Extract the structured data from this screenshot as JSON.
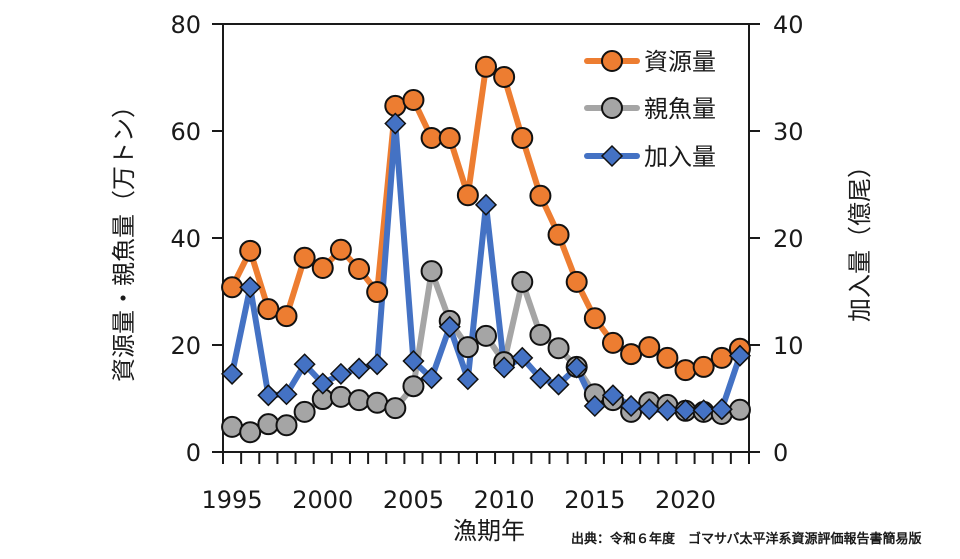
{
  "chart_data": {
    "type": "line",
    "title": "",
    "xlabel": "漁期年",
    "ylabel": "資源量・親魚量（万トン）",
    "y2label": "加入量（億尾）",
    "xlim": [
      1994.5,
      2023.5
    ],
    "ylim": [
      0,
      80
    ],
    "y2lim": [
      0,
      40
    ],
    "x_ticks": [
      1995,
      2000,
      2005,
      2010,
      2015,
      2020
    ],
    "y_ticks": [
      0,
      20,
      40,
      60,
      80
    ],
    "y2_ticks": [
      0,
      10,
      20,
      30,
      40
    ],
    "grid": false,
    "legend_position": "top-right",
    "x": [
      1995,
      1996,
      1997,
      1998,
      1999,
      2000,
      2001,
      2002,
      2003,
      2004,
      2005,
      2006,
      2007,
      2008,
      2009,
      2010,
      2011,
      2012,
      2013,
      2014,
      2015,
      2016,
      2017,
      2018,
      2019,
      2020,
      2021,
      2022,
      2023
    ],
    "series": [
      {
        "name": "資源量",
        "axis": "left",
        "marker": "circle",
        "color": "#ED7D31",
        "values": [
          30.8,
          37.6,
          26.7,
          25.4,
          36.3,
          34.4,
          37.8,
          34.2,
          29.9,
          64.7,
          65.8,
          58.7,
          58.7,
          48.0,
          72.0,
          70.1,
          58.7,
          47.9,
          40.6,
          31.8,
          25.0,
          20.4,
          18.3,
          19.6,
          17.6,
          15.3,
          15.9,
          17.6,
          19.3
        ]
      },
      {
        "name": "親魚量",
        "axis": "left",
        "marker": "circle",
        "color": "#A5A5A5",
        "values": [
          4.7,
          3.7,
          5.2,
          5.0,
          7.5,
          9.9,
          10.3,
          9.7,
          9.2,
          8.2,
          12.3,
          33.8,
          24.5,
          19.6,
          21.7,
          16.8,
          31.8,
          21.9,
          19.4,
          15.9,
          10.8,
          9.7,
          7.5,
          9.3,
          8.8,
          7.7,
          7.5,
          7.1,
          7.9
        ]
      },
      {
        "name": "加入量",
        "axis": "right",
        "marker": "diamond",
        "color": "#4472C4",
        "values": [
          7.3,
          15.4,
          5.3,
          5.4,
          8.2,
          6.4,
          7.3,
          7.8,
          8.2,
          30.7,
          8.5,
          6.9,
          11.7,
          6.8,
          23.1,
          7.9,
          8.8,
          6.9,
          6.3,
          7.9,
          4.3,
          5.3,
          4.3,
          4.0,
          3.9,
          3.9,
          3.9,
          4.0,
          9.0
        ]
      }
    ]
  },
  "source_note": "出典：令和６年度　ゴマサバ太平洋系資源評価報告書簡易版"
}
